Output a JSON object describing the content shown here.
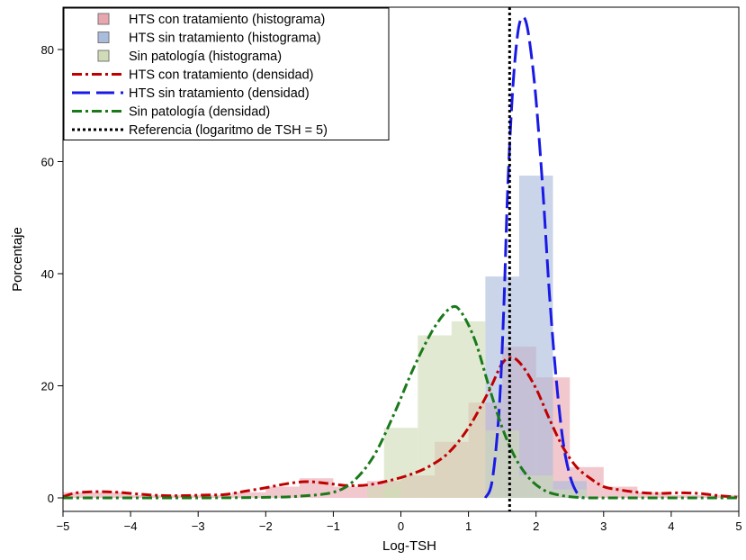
{
  "chart_data": {
    "type": "bar",
    "title": "",
    "xlabel": "Log-TSH",
    "ylabel": "Porcentaje",
    "xlim": [
      -5,
      5
    ],
    "ylim": [
      0,
      88
    ],
    "xticks": [
      -5,
      -4,
      -3,
      -2,
      -1,
      0,
      1,
      2,
      3,
      4,
      5
    ],
    "yticks": [
      0,
      20,
      40,
      60,
      80
    ],
    "xtick_labels": [
      "−5",
      "−4",
      "−3",
      "−2",
      "−1",
      "0",
      "1",
      "2",
      "3",
      "4",
      "5"
    ],
    "ytick_labels": [
      "0",
      "20",
      "40",
      "60",
      "80"
    ],
    "grid": false,
    "legend_position": "top-left",
    "histograms": [
      {
        "name": "HTS con tratamiento (histograma)",
        "color": "#e8a6ae",
        "bin_width": 0.5,
        "bins": [
          {
            "x": -4.75,
            "y": 1
          },
          {
            "x": -4.25,
            "y": 1
          },
          {
            "x": -3.75,
            "y": 0.5
          },
          {
            "x": -3.25,
            "y": 0.5
          },
          {
            "x": -2.75,
            "y": 0.5
          },
          {
            "x": -2.25,
            "y": 1
          },
          {
            "x": -1.75,
            "y": 2
          },
          {
            "x": -1.25,
            "y": 3.5
          },
          {
            "x": -0.75,
            "y": 2
          },
          {
            "x": -0.25,
            "y": 3
          },
          {
            "x": 0.25,
            "y": 4
          },
          {
            "x": 0.75,
            "y": 10
          },
          {
            "x": 1.25,
            "y": 17
          },
          {
            "x": 1.75,
            "y": 27
          },
          {
            "x": 2.25,
            "y": 21.5
          },
          {
            "x": 2.75,
            "y": 5.5
          },
          {
            "x": 3.25,
            "y": 2
          },
          {
            "x": 3.75,
            "y": 1
          },
          {
            "x": 4.25,
            "y": 0.5
          },
          {
            "x": 4.75,
            "y": 0.5
          }
        ]
      },
      {
        "name": "HTS sin tratamiento (histograma)",
        "color": "#a9bcdc",
        "bin_width": 0.5,
        "bins": [
          {
            "x": 1.5,
            "y": 39.5
          },
          {
            "x": 2.0,
            "y": 57.5
          },
          {
            "x": 2.5,
            "y": 3
          }
        ]
      },
      {
        "name": "Sin patología (histograma)",
        "color": "#cfdcb6",
        "bin_width": 0.5,
        "bins": [
          {
            "x": -0.25,
            "y": 2
          },
          {
            "x": 0.0,
            "y": 12.5
          },
          {
            "x": 0.5,
            "y": 29
          },
          {
            "x": 1.0,
            "y": 31.5
          },
          {
            "x": 1.5,
            "y": 12
          },
          {
            "x": 2.0,
            "y": 4
          },
          {
            "x": 2.5,
            "y": 1.5
          }
        ]
      }
    ],
    "series": [
      {
        "name": "HTS con tratamiento (densidad)",
        "color": "#c00000",
        "dash": "dash-dot",
        "points": [
          [
            -5,
            0.2
          ],
          [
            -4.8,
            0.9
          ],
          [
            -4.5,
            1.1
          ],
          [
            -4.2,
            1.0
          ],
          [
            -3.8,
            0.6
          ],
          [
            -3.5,
            0.4
          ],
          [
            -3.2,
            0.4
          ],
          [
            -2.9,
            0.5
          ],
          [
            -2.6,
            0.6
          ],
          [
            -2.3,
            1.2
          ],
          [
            -2.0,
            1.8
          ],
          [
            -1.7,
            2.5
          ],
          [
            -1.4,
            2.9
          ],
          [
            -1.1,
            2.6
          ],
          [
            -0.8,
            2.2
          ],
          [
            -0.5,
            2.3
          ],
          [
            -0.2,
            3.0
          ],
          [
            0.1,
            4.0
          ],
          [
            0.4,
            5.5
          ],
          [
            0.7,
            8.0
          ],
          [
            1.0,
            12.5
          ],
          [
            1.3,
            19.0
          ],
          [
            1.5,
            24.0
          ],
          [
            1.65,
            25.0
          ],
          [
            1.8,
            23.5
          ],
          [
            2.0,
            19.5
          ],
          [
            2.2,
            14.0
          ],
          [
            2.4,
            9.0
          ],
          [
            2.6,
            5.5
          ],
          [
            2.8,
            3.5
          ],
          [
            3.0,
            2.0
          ],
          [
            3.2,
            1.5
          ],
          [
            3.5,
            1.0
          ],
          [
            3.8,
            0.8
          ],
          [
            4.1,
            0.9
          ],
          [
            4.4,
            0.8
          ],
          [
            4.7,
            0.4
          ],
          [
            5,
            0.1
          ]
        ]
      },
      {
        "name": "HTS sin tratamiento (densidad)",
        "color": "#1a1ae6",
        "dash": "long-dash",
        "points": [
          [
            1.25,
            0
          ],
          [
            1.35,
            3
          ],
          [
            1.45,
            15
          ],
          [
            1.52,
            33
          ],
          [
            1.58,
            55
          ],
          [
            1.65,
            72
          ],
          [
            1.72,
            82
          ],
          [
            1.78,
            85.5
          ],
          [
            1.85,
            85
          ],
          [
            1.92,
            80
          ],
          [
            2.0,
            71
          ],
          [
            2.1,
            55
          ],
          [
            2.2,
            36
          ],
          [
            2.3,
            21
          ],
          [
            2.4,
            10
          ],
          [
            2.5,
            4
          ],
          [
            2.6,
            1
          ],
          [
            2.7,
            0
          ]
        ]
      },
      {
        "name": "Sin patología (densidad)",
        "color": "#1a7a1a",
        "dash": "dash-dot",
        "points": [
          [
            -5,
            0
          ],
          [
            -3.0,
            0
          ],
          [
            -2.0,
            0.1
          ],
          [
            -1.5,
            0.3
          ],
          [
            -1.0,
            1.0
          ],
          [
            -0.7,
            3.0
          ],
          [
            -0.4,
            7.5
          ],
          [
            -0.1,
            15
          ],
          [
            0.2,
            23.5
          ],
          [
            0.5,
            30.5
          ],
          [
            0.75,
            34
          ],
          [
            0.9,
            33
          ],
          [
            1.1,
            28
          ],
          [
            1.3,
            20
          ],
          [
            1.5,
            12.5
          ],
          [
            1.7,
            7
          ],
          [
            1.9,
            3.5
          ],
          [
            2.1,
            1.5
          ],
          [
            2.3,
            0.6
          ],
          [
            2.6,
            0.1
          ],
          [
            3.0,
            0
          ],
          [
            5,
            0
          ]
        ]
      }
    ],
    "reference_line": {
      "name": "Referencia (logaritmo de TSH = 5)",
      "x": 1.609,
      "color": "#000000",
      "dash": "dotted"
    }
  }
}
